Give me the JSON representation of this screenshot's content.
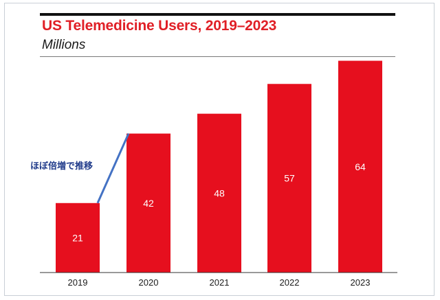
{
  "chart_data": {
    "type": "bar",
    "title": "US Telemedicine Users, 2019–2023",
    "subtitle": "Millions",
    "categories": [
      "2019",
      "2020",
      "2021",
      "2022",
      "2023"
    ],
    "values": [
      21,
      42,
      48,
      57,
      64
    ],
    "xlabel": "",
    "ylabel": "Millions",
    "ylim": [
      0,
      70
    ],
    "grid": false,
    "bar_color": "#e60f1e",
    "label_color": "#ffffff",
    "annotation": {
      "text": "ほぼ倍増で推移",
      "from_category": "2019",
      "to_category": "2020",
      "line_color": "#4472c4"
    }
  },
  "colors": {
    "title": "#e01f26",
    "rule": "#111111",
    "annotation_text": "#1f3a8a"
  }
}
